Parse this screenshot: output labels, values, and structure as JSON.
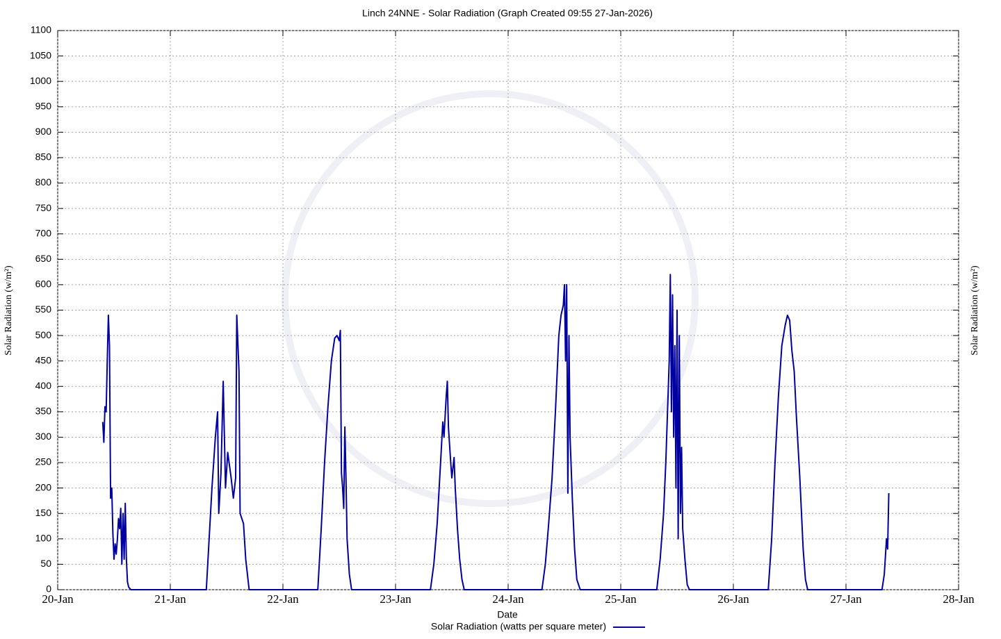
{
  "chart_data": {
    "type": "line",
    "title": "Linch 24NNE - Solar Radiation (Graph Created 09:55 27-Jan-2026)",
    "xlabel": "Date",
    "ylabel": "Solar Radiation (w/m²)",
    "grid": true,
    "legend": "bottom",
    "xlim": [
      0,
      8
    ],
    "xticks": [
      {
        "value": 0,
        "label": "20-Jan"
      },
      {
        "value": 1,
        "label": "21-Jan"
      },
      {
        "value": 2,
        "label": "22-Jan"
      },
      {
        "value": 3,
        "label": "23-Jan"
      },
      {
        "value": 4,
        "label": "24-Jan"
      },
      {
        "value": 5,
        "label": "25-Jan"
      },
      {
        "value": 6,
        "label": "26-Jan"
      },
      {
        "value": 7,
        "label": "27-Jan"
      },
      {
        "value": 8,
        "label": "28-Jan"
      }
    ],
    "ylim": [
      0,
      1100
    ],
    "yticks": [
      0,
      50,
      100,
      150,
      200,
      250,
      300,
      350,
      400,
      450,
      500,
      550,
      600,
      650,
      700,
      750,
      800,
      850,
      900,
      950,
      1000,
      1050,
      1100
    ],
    "x": [
      0.4,
      0.41,
      0.42,
      0.43,
      0.44,
      0.45,
      0.46,
      0.47,
      0.48,
      0.49,
      0.5,
      0.51,
      0.52,
      0.53,
      0.54,
      0.55,
      0.56,
      0.57,
      0.58,
      0.59,
      0.6,
      0.61,
      0.62,
      0.63,
      0.65,
      0.7,
      1.32,
      1.37,
      1.4,
      1.42,
      1.43,
      1.45,
      1.47,
      1.49,
      1.51,
      1.54,
      1.56,
      1.58,
      1.59,
      1.61,
      1.62,
      1.65,
      1.67,
      1.7,
      2.31,
      2.34,
      2.37,
      2.4,
      2.43,
      2.46,
      2.48,
      2.5,
      2.51,
      2.52,
      2.53,
      2.54,
      2.55,
      2.56,
      2.57,
      2.59,
      2.61,
      3.31,
      3.34,
      3.37,
      3.4,
      3.42,
      3.43,
      3.45,
      3.46,
      3.47,
      3.49,
      3.5,
      3.52,
      3.53,
      3.55,
      3.57,
      3.59,
      3.61,
      4.3,
      4.33,
      4.36,
      4.39,
      4.42,
      4.45,
      4.47,
      4.49,
      4.5,
      4.51,
      4.52,
      4.53,
      4.54,
      4.55,
      4.57,
      4.59,
      4.61,
      4.64,
      5.32,
      5.35,
      5.38,
      5.4,
      5.42,
      5.43,
      5.44,
      5.45,
      5.46,
      5.47,
      5.48,
      5.49,
      5.5,
      5.51,
      5.52,
      5.53,
      5.54,
      5.55,
      5.57,
      5.59,
      5.61,
      6.31,
      6.34,
      6.37,
      6.4,
      6.43,
      6.46,
      6.48,
      6.5,
      6.52,
      6.54,
      6.56,
      6.59,
      6.62,
      6.64,
      6.66,
      7.32,
      7.34,
      7.36,
      7.37,
      7.38
    ],
    "series": [
      {
        "name": "Solar Radiation (watts per square meter)",
        "color": "#0000a0",
        "values": [
          330,
          290,
          360,
          350,
          450,
          540,
          480,
          180,
          200,
          110,
          60,
          90,
          70,
          100,
          140,
          120,
          160,
          50,
          150,
          60,
          170,
          60,
          15,
          5,
          0,
          0,
          0,
          200,
          300,
          350,
          150,
          230,
          410,
          200,
          270,
          220,
          180,
          220,
          540,
          430,
          150,
          130,
          60,
          0,
          0,
          120,
          250,
          360,
          450,
          495,
          500,
          490,
          510,
          230,
          200,
          160,
          320,
          220,
          100,
          30,
          0,
          0,
          50,
          130,
          250,
          330,
          300,
          380,
          410,
          320,
          250,
          220,
          260,
          200,
          120,
          60,
          20,
          0,
          0,
          50,
          130,
          220,
          350,
          500,
          540,
          560,
          600,
          450,
          600,
          190,
          500,
          300,
          180,
          80,
          20,
          0,
          0,
          60,
          150,
          250,
          380,
          450,
          620,
          350,
          580,
          300,
          480,
          200,
          550,
          100,
          500,
          150,
          280,
          120,
          60,
          10,
          0,
          0,
          100,
          250,
          380,
          480,
          520,
          540,
          530,
          470,
          430,
          340,
          220,
          80,
          20,
          0,
          0,
          30,
          100,
          80,
          190
        ]
      }
    ]
  }
}
